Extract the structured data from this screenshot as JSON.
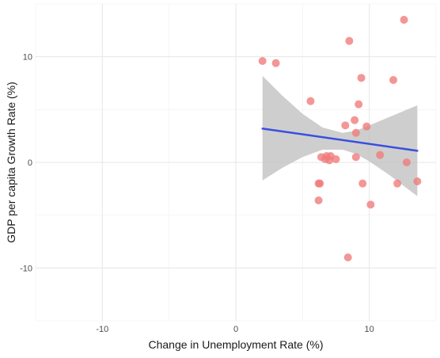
{
  "chart_data": {
    "type": "scatter",
    "title": "",
    "xlabel": "Change in Unemployment Rate (%)",
    "ylabel": "GDP per capita Growth Rate (%)",
    "xlim": [
      -15,
      15
    ],
    "ylim": [
      -15,
      15
    ],
    "x_ticks": [
      -10,
      0,
      10
    ],
    "y_ticks": [
      -10,
      0,
      10
    ],
    "grid": true,
    "background": "#ffffff",
    "point_color": "#f07c7c",
    "line_color": "#3a4ee0",
    "band_color": "#bdbdbd",
    "points": [
      {
        "x": 2.0,
        "y": 9.6
      },
      {
        "x": 3.0,
        "y": 9.4
      },
      {
        "x": 5.6,
        "y": 5.8
      },
      {
        "x": 8.5,
        "y": 11.5
      },
      {
        "x": 12.6,
        "y": 13.5
      },
      {
        "x": 9.4,
        "y": 8.0
      },
      {
        "x": 11.8,
        "y": 7.8
      },
      {
        "x": 9.2,
        "y": 5.5
      },
      {
        "x": 8.9,
        "y": 4.0
      },
      {
        "x": 8.2,
        "y": 3.5
      },
      {
        "x": 9.8,
        "y": 3.4
      },
      {
        "x": 9.0,
        "y": 2.8
      },
      {
        "x": 6.4,
        "y": 0.5
      },
      {
        "x": 6.8,
        "y": 0.6
      },
      {
        "x": 7.1,
        "y": 0.6
      },
      {
        "x": 6.7,
        "y": 0.3
      },
      {
        "x": 7.0,
        "y": 0.2
      },
      {
        "x": 7.5,
        "y": 0.3
      },
      {
        "x": 9.0,
        "y": 0.5
      },
      {
        "x": 10.8,
        "y": 0.7
      },
      {
        "x": 12.8,
        "y": 0.0
      },
      {
        "x": 6.2,
        "y": -2.0
      },
      {
        "x": 6.3,
        "y": -2.0
      },
      {
        "x": 9.5,
        "y": -2.0
      },
      {
        "x": 12.1,
        "y": -2.0
      },
      {
        "x": 13.6,
        "y": -1.8
      },
      {
        "x": 6.2,
        "y": -3.6
      },
      {
        "x": 10.1,
        "y": -4.0
      },
      {
        "x": 8.4,
        "y": -9.0
      }
    ],
    "fit_line": {
      "x": [
        2.0,
        13.6
      ],
      "y": [
        3.2,
        1.1
      ]
    },
    "confidence_band": {
      "x": [
        2.0,
        3.5,
        5.0,
        6.5,
        8.0,
        9.0,
        10.0,
        11.5,
        13.6
      ],
      "upper": [
        8.2,
        6.3,
        4.6,
        3.3,
        2.8,
        3.0,
        3.5,
        4.3,
        5.4
      ],
      "lower": [
        -1.7,
        -0.5,
        0.5,
        1.2,
        1.2,
        0.8,
        0.1,
        -1.2,
        -3.2
      ]
    }
  }
}
